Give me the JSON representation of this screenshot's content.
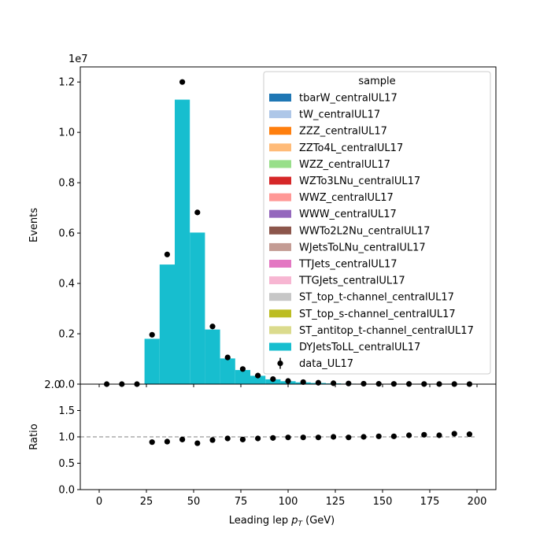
{
  "chart_data": [
    {
      "type": "bar",
      "subtype": "stacked-histogram-with-data-points",
      "title": "",
      "xlabel": "",
      "ylabel": "Events",
      "y_scale_label": "1e7",
      "xlim": [
        -10,
        210
      ],
      "ylim": [
        0,
        12600000
      ],
      "xticks": [
        "0",
        "25",
        "50",
        "75",
        "100",
        "125",
        "150",
        "175",
        "200"
      ],
      "yticks": [
        "0.0",
        "0.2",
        "0.4",
        "0.6",
        "0.8",
        "1.0",
        "1.2"
      ],
      "bin_edges": [
        0,
        8,
        16,
        24,
        32,
        40,
        48,
        56,
        64,
        72,
        80,
        88,
        96,
        104,
        112,
        120,
        128,
        136,
        144,
        152,
        160,
        168,
        176,
        184,
        192,
        200
      ],
      "legend": {
        "title": "sample",
        "position": "upper-right",
        "entries": [
          {
            "name": "tbarW_centralUL17",
            "color": "#1f77b4",
            "kind": "patch"
          },
          {
            "name": "tW_centralUL17",
            "color": "#aec7e8",
            "kind": "patch"
          },
          {
            "name": "ZZZ_centralUL17",
            "color": "#ff7f0e",
            "kind": "patch"
          },
          {
            "name": "ZZTo4L_centralUL17",
            "color": "#ffbb78",
            "kind": "patch"
          },
          {
            "name": "WZZ_centralUL17",
            "color": "#98df8a",
            "kind": "patch"
          },
          {
            "name": "WZTo3LNu_centralUL17",
            "color": "#d62728",
            "kind": "patch"
          },
          {
            "name": "WWZ_centralUL17",
            "color": "#ff9896",
            "kind": "patch"
          },
          {
            "name": "WWW_centralUL17",
            "color": "#9467bd",
            "kind": "patch"
          },
          {
            "name": "WWTo2L2Nu_centralUL17",
            "color": "#8c564b",
            "kind": "patch"
          },
          {
            "name": "WJetsToLNu_centralUL17",
            "color": "#c49c94",
            "kind": "patch"
          },
          {
            "name": "TTJets_centralUL17",
            "color": "#e377c2",
            "kind": "patch"
          },
          {
            "name": "TTGJets_centralUL17",
            "color": "#f7b6d2",
            "kind": "patch"
          },
          {
            "name": "ST_top_t-channel_centralUL17",
            "color": "#c7c7c7",
            "kind": "patch"
          },
          {
            "name": "ST_top_s-channel_centralUL17",
            "color": "#bcbd22",
            "kind": "patch"
          },
          {
            "name": "ST_antitop_t-channel_centralUL17",
            "color": "#dbdb8d",
            "kind": "patch"
          },
          {
            "name": "DYJetsToLL_centralUL17",
            "color": "#17becf",
            "kind": "patch"
          },
          {
            "name": "data_UL17",
            "color": "#000000",
            "kind": "errorbar"
          }
        ]
      },
      "series": [
        {
          "name": "DYJetsToLL_centralUL17",
          "color": "#17becf",
          "values": [
            0,
            0,
            0,
            1800000,
            4750000,
            11300000,
            6020000,
            2170000,
            1020000,
            560000,
            330000,
            190000,
            115000,
            70000,
            45000,
            28000,
            18000,
            12000,
            8000,
            6000,
            4000,
            3000,
            2000,
            1500,
            1000
          ]
        },
        {
          "name": "data_UL17",
          "color": "#000000",
          "x": [
            4,
            12,
            20,
            28,
            36,
            44,
            52,
            60,
            68,
            76,
            84,
            92,
            100,
            108,
            116,
            124,
            132,
            140,
            148,
            156,
            164,
            172,
            180,
            188,
            196
          ],
          "values": [
            0,
            0,
            0,
            1960000,
            5150000,
            12000000,
            6820000,
            2290000,
            1060000,
            600000,
            340000,
            200000,
            125000,
            80000,
            55000,
            35000,
            25000,
            18000,
            12000,
            9000,
            7000,
            5000,
            4000,
            3000,
            2000
          ]
        }
      ]
    },
    {
      "type": "scatter",
      "subtype": "ratio-panel",
      "title": "",
      "xlabel": "Leading lep p_T (GeV)",
      "xlabel_main": "Leading lep ",
      "xlabel_sub": "T",
      "xlabel_p": "p",
      "xlabel_unit": " (GeV)",
      "ylabel": "Ratio",
      "xlim": [
        -10,
        210
      ],
      "ylim": [
        0,
        2.0
      ],
      "xticks": [
        "0",
        "25",
        "50",
        "75",
        "100",
        "125",
        "150",
        "175",
        "200"
      ],
      "yticks": [
        "0.0",
        "0.5",
        "1.0",
        "1.5"
      ],
      "top_tick_label": "2.0",
      "reference_line": 1.0,
      "series": [
        {
          "name": "",
          "x": [
            28,
            36,
            44,
            52,
            60,
            68,
            76,
            84,
            92,
            100,
            108,
            116,
            124,
            132,
            140,
            148,
            156,
            164,
            172,
            180,
            188,
            196
          ],
          "values": [
            0.9,
            0.91,
            0.95,
            0.88,
            0.94,
            0.97,
            0.95,
            0.97,
            0.98,
            0.99,
            0.99,
            0.99,
            1.0,
            0.99,
            1.0,
            1.01,
            1.01,
            1.03,
            1.04,
            1.03,
            1.06,
            1.05
          ]
        }
      ]
    }
  ]
}
